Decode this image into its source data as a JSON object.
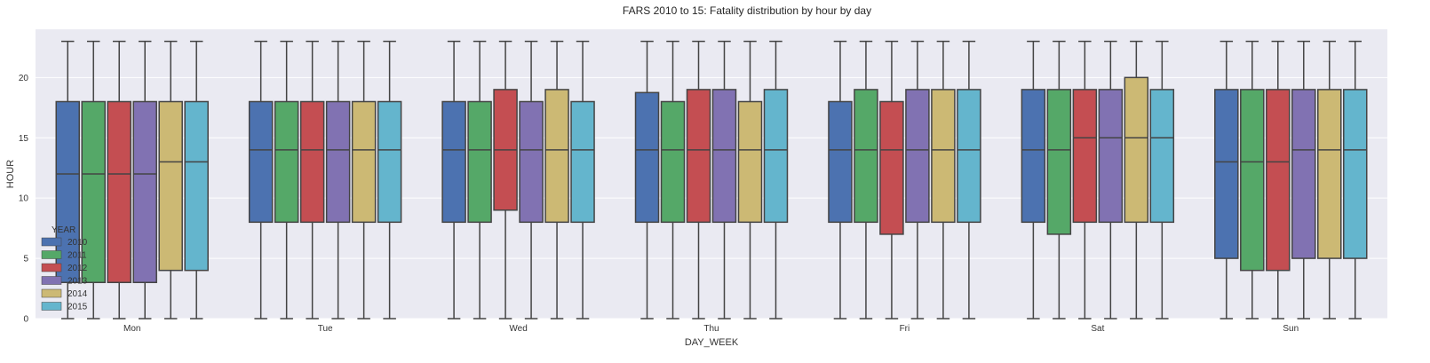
{
  "chart_data": {
    "type": "boxplot",
    "title": "FARS 2010 to 15: Fatality distribution by hour by day",
    "xlabel": "DAY_WEEK",
    "ylabel": "HOUR",
    "ylim": [
      0,
      24
    ],
    "yticks": [
      0,
      5,
      10,
      15,
      20
    ],
    "grid": true,
    "legend": {
      "title": "YEAR",
      "position": "lower-left"
    },
    "categories": [
      "Mon",
      "Tue",
      "Wed",
      "Thu",
      "Fri",
      "Sat",
      "Sun"
    ],
    "series": [
      {
        "name": "2010",
        "color": "#4c72b0",
        "boxes": [
          {
            "min": 0,
            "q1": 3,
            "median": 12,
            "q3": 18,
            "max": 23
          },
          {
            "min": 0,
            "q1": 8,
            "median": 14,
            "q3": 18,
            "max": 23
          },
          {
            "min": 0,
            "q1": 8,
            "median": 14,
            "q3": 18,
            "max": 23
          },
          {
            "min": 0,
            "q1": 8,
            "median": 14,
            "q3": 18.75,
            "max": 23
          },
          {
            "min": 0,
            "q1": 8,
            "median": 14,
            "q3": 18,
            "max": 23
          },
          {
            "min": 0,
            "q1": 8,
            "median": 14,
            "q3": 19,
            "max": 23
          },
          {
            "min": 0,
            "q1": 5,
            "median": 13,
            "q3": 19,
            "max": 23
          }
        ]
      },
      {
        "name": "2011",
        "color": "#55a868",
        "boxes": [
          {
            "min": 0,
            "q1": 3,
            "median": 12,
            "q3": 18,
            "max": 23
          },
          {
            "min": 0,
            "q1": 8,
            "median": 14,
            "q3": 18,
            "max": 23
          },
          {
            "min": 0,
            "q1": 8,
            "median": 14,
            "q3": 18,
            "max": 23
          },
          {
            "min": 0,
            "q1": 8,
            "median": 14,
            "q3": 18,
            "max": 23
          },
          {
            "min": 0,
            "q1": 8,
            "median": 14,
            "q3": 19,
            "max": 23
          },
          {
            "min": 0,
            "q1": 7,
            "median": 14,
            "q3": 19,
            "max": 23
          },
          {
            "min": 0,
            "q1": 4,
            "median": 13,
            "q3": 19,
            "max": 23
          }
        ]
      },
      {
        "name": "2012",
        "color": "#c44e52",
        "boxes": [
          {
            "min": 0,
            "q1": 3,
            "median": 12,
            "q3": 18,
            "max": 23
          },
          {
            "min": 0,
            "q1": 8,
            "median": 14,
            "q3": 18,
            "max": 23
          },
          {
            "min": 0,
            "q1": 9,
            "median": 14,
            "q3": 19,
            "max": 23
          },
          {
            "min": 0,
            "q1": 8,
            "median": 14,
            "q3": 19,
            "max": 23
          },
          {
            "min": 0,
            "q1": 7,
            "median": 14,
            "q3": 18,
            "max": 23
          },
          {
            "min": 0,
            "q1": 8,
            "median": 15,
            "q3": 19,
            "max": 23
          },
          {
            "min": 0,
            "q1": 4,
            "median": 13,
            "q3": 19,
            "max": 23
          }
        ]
      },
      {
        "name": "2013",
        "color": "#8172b2",
        "boxes": [
          {
            "min": 0,
            "q1": 3,
            "median": 12,
            "q3": 18,
            "max": 23
          },
          {
            "min": 0,
            "q1": 8,
            "median": 14,
            "q3": 18,
            "max": 23
          },
          {
            "min": 0,
            "q1": 8,
            "median": 14,
            "q3": 18,
            "max": 23
          },
          {
            "min": 0,
            "q1": 8,
            "median": 14,
            "q3": 19,
            "max": 23
          },
          {
            "min": 0,
            "q1": 8,
            "median": 14,
            "q3": 19,
            "max": 23
          },
          {
            "min": 0,
            "q1": 8,
            "median": 15,
            "q3": 19,
            "max": 23
          },
          {
            "min": 0,
            "q1": 5,
            "median": 14,
            "q3": 19,
            "max": 23
          }
        ]
      },
      {
        "name": "2014",
        "color": "#ccb974",
        "boxes": [
          {
            "min": 0,
            "q1": 4,
            "median": 13,
            "q3": 18,
            "max": 23
          },
          {
            "min": 0,
            "q1": 8,
            "median": 14,
            "q3": 18,
            "max": 23
          },
          {
            "min": 0,
            "q1": 8,
            "median": 14,
            "q3": 19,
            "max": 23
          },
          {
            "min": 0,
            "q1": 8,
            "median": 14,
            "q3": 18,
            "max": 23
          },
          {
            "min": 0,
            "q1": 8,
            "median": 14,
            "q3": 19,
            "max": 23
          },
          {
            "min": 0,
            "q1": 8,
            "median": 15,
            "q3": 20,
            "max": 23
          },
          {
            "min": 0,
            "q1": 5,
            "median": 14,
            "q3": 19,
            "max": 23
          }
        ]
      },
      {
        "name": "2015",
        "color": "#64b5cd",
        "boxes": [
          {
            "min": 0,
            "q1": 4,
            "median": 13,
            "q3": 18,
            "max": 23
          },
          {
            "min": 0,
            "q1": 8,
            "median": 14,
            "q3": 18,
            "max": 23
          },
          {
            "min": 0,
            "q1": 8,
            "median": 14,
            "q3": 18,
            "max": 23
          },
          {
            "min": 0,
            "q1": 8,
            "median": 14,
            "q3": 19,
            "max": 23
          },
          {
            "min": 0,
            "q1": 8,
            "median": 14,
            "q3": 19,
            "max": 23
          },
          {
            "min": 0,
            "q1": 8,
            "median": 15,
            "q3": 19,
            "max": 23
          },
          {
            "min": 0,
            "q1": 5,
            "median": 14,
            "q3": 19,
            "max": 23
          }
        ]
      }
    ]
  }
}
